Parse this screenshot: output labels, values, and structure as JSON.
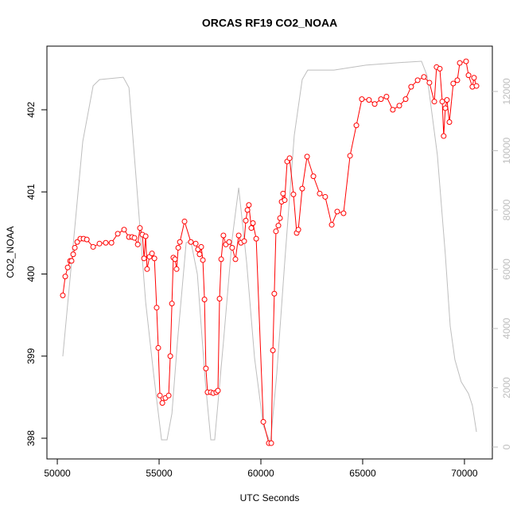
{
  "chart_data": {
    "type": "line",
    "title": "ORCAS RF19 CO2_NOAA",
    "xlabel": "UTC Seconds",
    "ylabel": "CO2_NOAA",
    "xlim": [
      49490,
      71370
    ],
    "ylim": [
      397.748,
      402.775
    ],
    "y2lim": [
      -403,
      13530
    ],
    "xticks": [
      50000,
      55000,
      60000,
      65000,
      70000
    ],
    "yticks": [
      398,
      399,
      400,
      401,
      402
    ],
    "y2ticks": [
      0,
      2000,
      4000,
      6000,
      8000,
      10000,
      12000
    ],
    "series": [
      {
        "color": "#ff0000",
        "marker": "circle",
        "x": [
          50270,
          50390,
          50510,
          50630,
          50700,
          50780,
          50860,
          50980,
          51130,
          51290,
          51450,
          51760,
          52070,
          52380,
          52660,
          52970,
          53280,
          53520,
          53670,
          53790,
          53950,
          54060,
          54180,
          54260,
          54340,
          54410,
          54530,
          54650,
          54770,
          54880,
          54960,
          55040,
          55160,
          55310,
          55470,
          55550,
          55630,
          55700,
          55780,
          55860,
          55940,
          56020,
          56250,
          56560,
          56800,
          56910,
          56990,
          57070,
          57150,
          57230,
          57300,
          57380,
          57540,
          57660,
          57810,
          57890,
          57970,
          58050,
          58160,
          58280,
          58440,
          58590,
          58750,
          58910,
          59020,
          59180,
          59260,
          59340,
          59410,
          59530,
          59610,
          59770,
          60120,
          60390,
          60510,
          60590,
          60660,
          60740,
          60860,
          60940,
          61020,
          61090,
          61170,
          61290,
          61410,
          61600,
          61760,
          61840,
          62030,
          62270,
          62580,
          62890,
          63160,
          63480,
          63750,
          64060,
          64380,
          64690,
          64960,
          65310,
          65590,
          65900,
          66170,
          66480,
          66800,
          67110,
          67380,
          67700,
          68010,
          68280,
          68520,
          68630,
          68790,
          68910,
          68980,
          69060,
          69140,
          69260,
          69450,
          69650,
          69770,
          70080,
          70200,
          70390,
          70470,
          70590
        ],
        "values": [
          399.74,
          399.97,
          400.08,
          400.16,
          400.16,
          400.24,
          400.32,
          400.39,
          400.43,
          400.43,
          400.42,
          400.33,
          400.37,
          400.38,
          400.38,
          400.49,
          400.54,
          400.45,
          400.45,
          400.44,
          400.36,
          400.56,
          400.48,
          400.19,
          400.46,
          400.06,
          400.21,
          400.25,
          400.19,
          399.59,
          399.1,
          398.52,
          398.43,
          398.49,
          398.52,
          399.0,
          399.64,
          400.2,
          400.18,
          400.06,
          400.32,
          400.39,
          400.64,
          400.39,
          400.37,
          400.3,
          400.24,
          400.33,
          400.17,
          399.69,
          398.85,
          398.56,
          398.56,
          398.55,
          398.56,
          398.58,
          399.7,
          400.18,
          400.47,
          400.36,
          400.39,
          400.32,
          400.18,
          400.47,
          400.38,
          400.4,
          400.65,
          400.78,
          400.84,
          400.56,
          400.62,
          400.43,
          398.2,
          397.94,
          397.94,
          399.07,
          399.76,
          400.52,
          400.59,
          400.68,
          400.88,
          400.98,
          400.9,
          401.37,
          401.41,
          400.97,
          400.5,
          400.54,
          401.04,
          401.43,
          401.19,
          400.98,
          400.94,
          400.6,
          400.76,
          400.74,
          401.44,
          401.81,
          402.13,
          402.12,
          402.07,
          402.13,
          402.16,
          402.0,
          402.05,
          402.13,
          402.28,
          402.36,
          402.4,
          402.33,
          402.1,
          402.52,
          402.5,
          402.1,
          401.68,
          402.02,
          402.12,
          401.85,
          402.32,
          402.36,
          402.57,
          402.59,
          402.42,
          402.28,
          402.39,
          402.29
        ]
      },
      {
        "color": "#bebebe",
        "axis": "y2",
        "x": [
          50270,
          50700,
          51250,
          51760,
          52070,
          53240,
          53520,
          53950,
          54340,
          54730,
          55120,
          55390,
          55630,
          55900,
          56330,
          56560,
          56880,
          57270,
          57540,
          57730,
          58160,
          58590,
          58910,
          59300,
          59690,
          60120,
          60470,
          60780,
          61170,
          61640,
          62030,
          62300,
          63590,
          65160,
          66720,
          67890,
          68160,
          68670,
          69060,
          69300,
          69530,
          69840,
          70200,
          70390,
          70590
        ],
        "values": [
          3060,
          6230,
          10310,
          12190,
          12400,
          12480,
          12130,
          8380,
          4890,
          2470,
          240,
          240,
          1130,
          3540,
          6900,
          6950,
          5830,
          2200,
          240,
          240,
          3540,
          7030,
          8750,
          6230,
          3000,
          720,
          130,
          2470,
          6230,
          10520,
          12400,
          12720,
          12720,
          12890,
          12970,
          13020,
          12540,
          9850,
          6500,
          4080,
          2950,
          2200,
          1800,
          1400,
          510
        ]
      }
    ]
  }
}
